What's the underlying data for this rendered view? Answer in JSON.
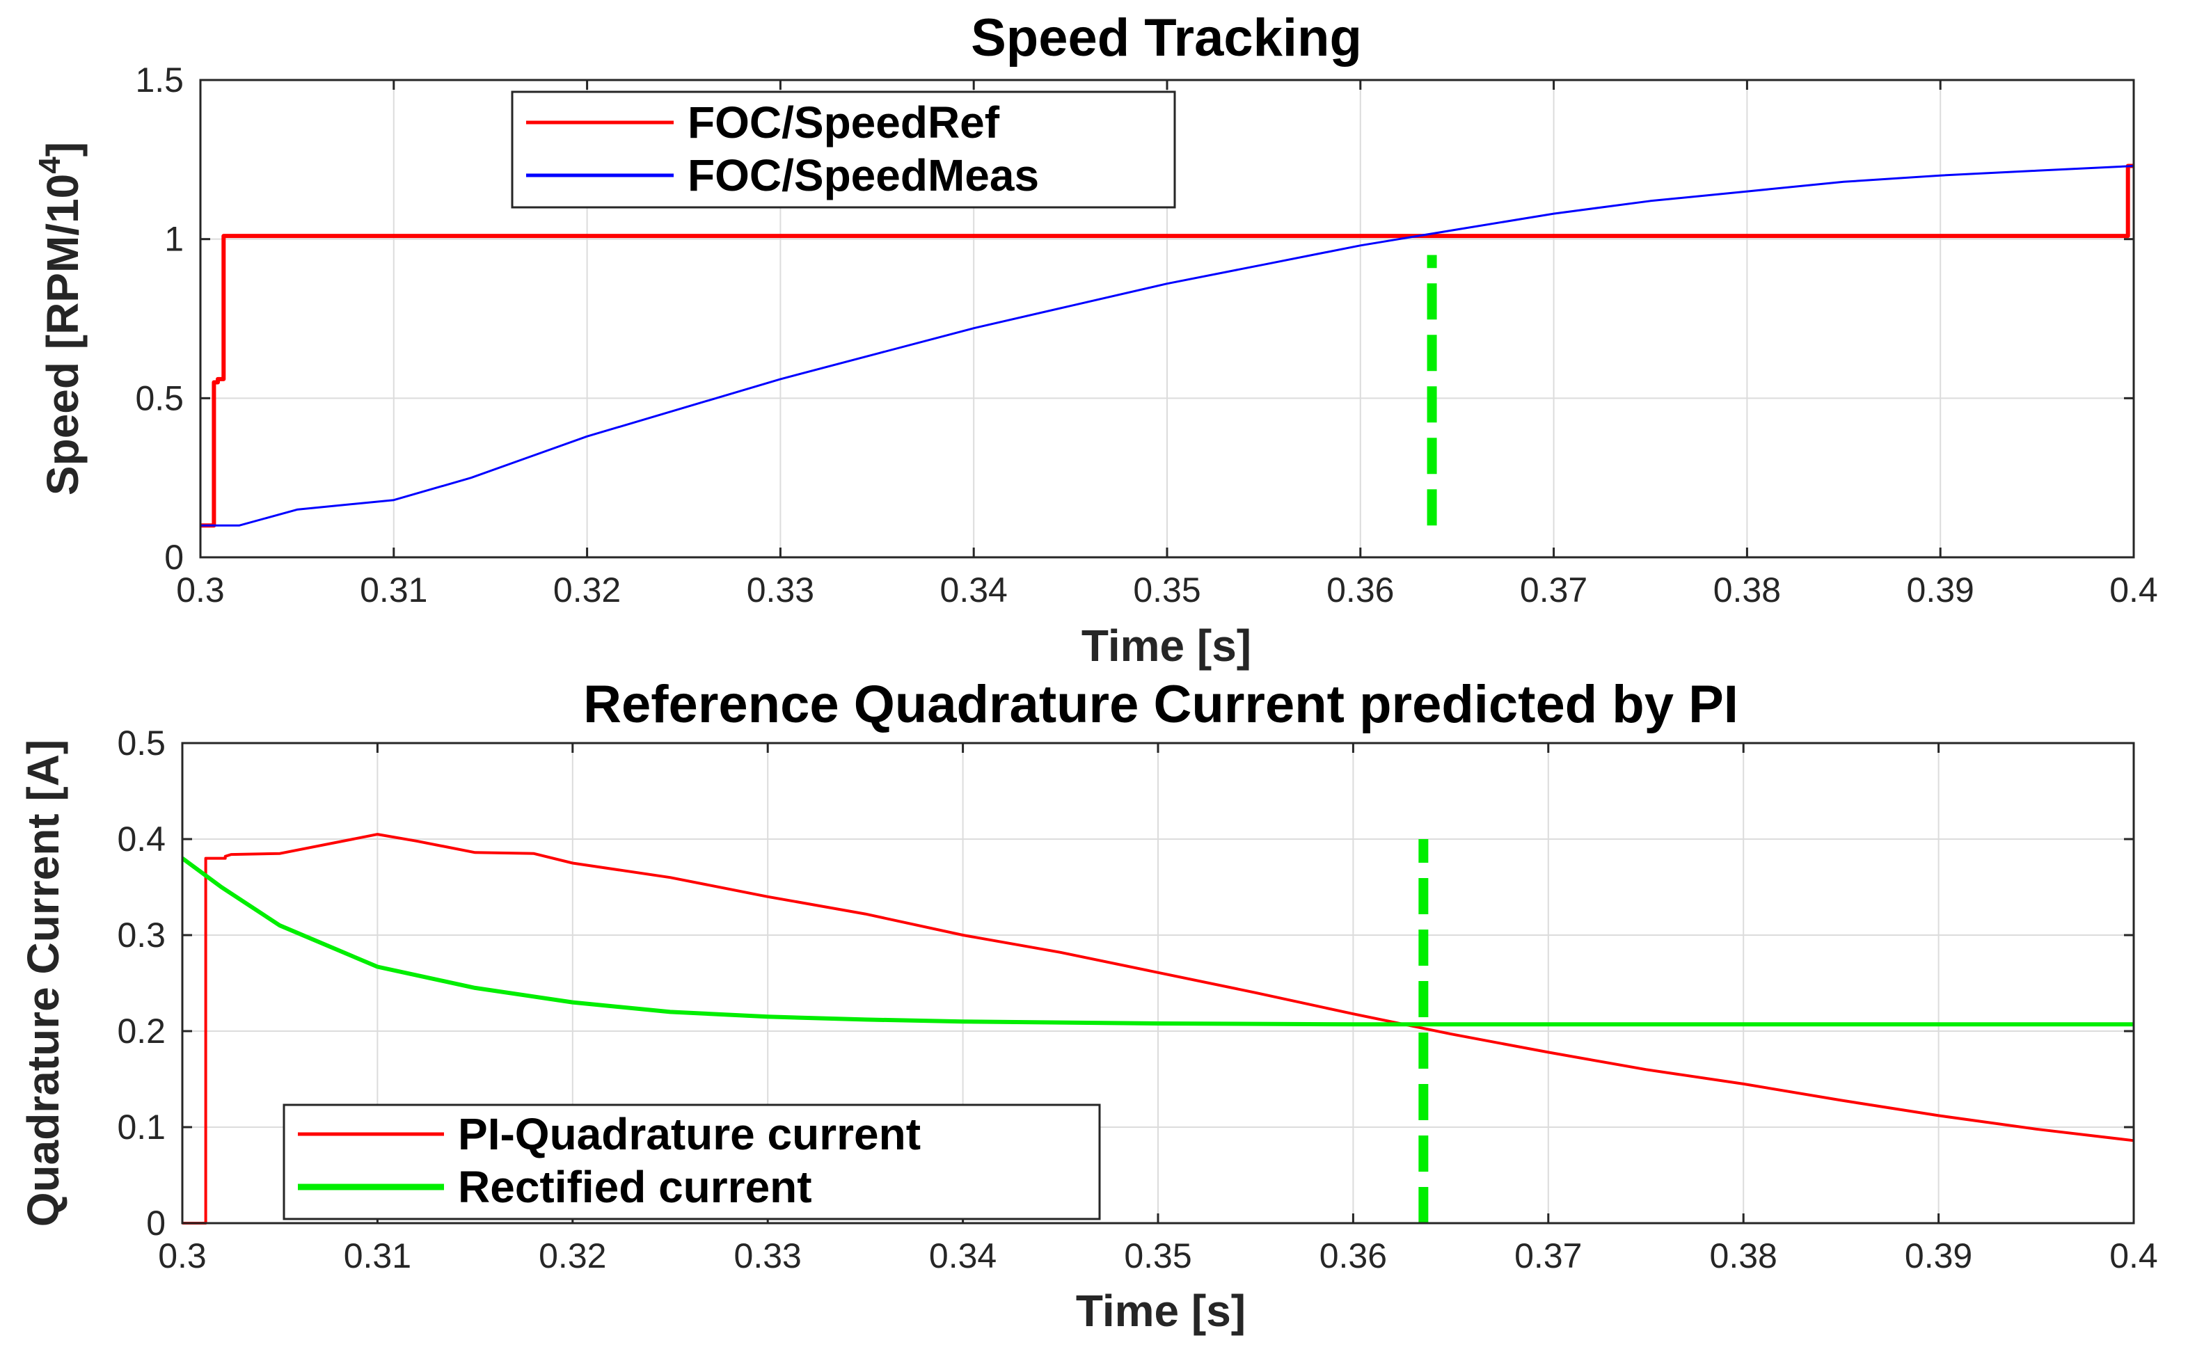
{
  "chart_data": [
    {
      "type": "line",
      "title": "Speed Tracking",
      "xlabel": "Time [s]",
      "ylabel": "Speed [RPM/10",
      "ylabel_sup": "4",
      "ylabel_close": "]",
      "xlim": [
        0.3,
        0.4
      ],
      "ylim": [
        0,
        1.5
      ],
      "xticks": [
        "0.3",
        "0.31",
        "0.32",
        "0.33",
        "0.34",
        "0.35",
        "0.36",
        "0.37",
        "0.38",
        "0.39",
        "0.4"
      ],
      "yticks": [
        "0",
        "0.5",
        "1",
        "1.5"
      ],
      "grid": true,
      "legend_position": "top-left",
      "vline": {
        "x": 0.3637,
        "y_range": [
          0.1,
          0.95
        ],
        "color": "#00ee00",
        "style": "dashed"
      },
      "series": [
        {
          "name": "FOC/SpeedRef",
          "color": "#ff0000",
          "x": [
            0.3,
            0.3007,
            0.3007,
            0.3009,
            0.3009,
            0.3012,
            0.3012,
            0.3997,
            0.3997,
            0.4
          ],
          "y": [
            0.1,
            0.1,
            0.55,
            0.55,
            0.56,
            0.56,
            1.01,
            1.01,
            1.23,
            1.23
          ]
        },
        {
          "name": "FOC/SpeedMeas",
          "color": "#0000ff",
          "x": [
            0.3,
            0.302,
            0.305,
            0.31,
            0.314,
            0.32,
            0.325,
            0.33,
            0.335,
            0.34,
            0.345,
            0.35,
            0.355,
            0.36,
            0.365,
            0.37,
            0.375,
            0.38,
            0.385,
            0.39,
            0.395,
            0.4
          ],
          "y": [
            0.1,
            0.1,
            0.15,
            0.18,
            0.25,
            0.38,
            0.47,
            0.56,
            0.64,
            0.72,
            0.79,
            0.86,
            0.92,
            0.98,
            1.03,
            1.08,
            1.12,
            1.15,
            1.18,
            1.2,
            1.215,
            1.23
          ]
        }
      ]
    },
    {
      "type": "line",
      "title": "Reference Quadrature Current predicted by PI",
      "xlabel": "Time [s]",
      "ylabel": "Quadrature Current [A]",
      "xlim": [
        0.3,
        0.4
      ],
      "ylim": [
        0,
        0.5
      ],
      "xticks": [
        "0.3",
        "0.31",
        "0.32",
        "0.33",
        "0.34",
        "0.35",
        "0.36",
        "0.37",
        "0.38",
        "0.39",
        "0.4"
      ],
      "yticks": [
        "0",
        "0.1",
        "0.2",
        "0.3",
        "0.4",
        "0.5"
      ],
      "grid": true,
      "legend_position": "bottom-left",
      "vline": {
        "x": 0.3636,
        "y_range": [
          0,
          0.4
        ],
        "color": "#00ee00",
        "style": "dashed"
      },
      "series": [
        {
          "name": "PI-Quadrature current",
          "color": "#ff0000",
          "x": [
            0.3,
            0.3012,
            0.3012,
            0.3022,
            0.3022,
            0.3025,
            0.305,
            0.31,
            0.312,
            0.315,
            0.318,
            0.32,
            0.325,
            0.33,
            0.335,
            0.34,
            0.345,
            0.35,
            0.355,
            0.36,
            0.365,
            0.37,
            0.375,
            0.38,
            0.385,
            0.39,
            0.395,
            0.4
          ],
          "y": [
            0,
            0,
            0.38,
            0.38,
            0.382,
            0.384,
            0.385,
            0.405,
            0.398,
            0.386,
            0.385,
            0.375,
            0.36,
            0.34,
            0.322,
            0.3,
            0.282,
            0.261,
            0.24,
            0.218,
            0.197,
            0.178,
            0.16,
            0.145,
            0.128,
            0.112,
            0.098,
            0.086
          ]
        },
        {
          "name": "Rectified current",
          "color": "#00ee00",
          "x": [
            0.3,
            0.302,
            0.305,
            0.31,
            0.315,
            0.32,
            0.325,
            0.33,
            0.335,
            0.34,
            0.345,
            0.35,
            0.36,
            0.37,
            0.38,
            0.39,
            0.4
          ],
          "y": [
            0.38,
            0.35,
            0.31,
            0.267,
            0.245,
            0.23,
            0.22,
            0.215,
            0.212,
            0.21,
            0.209,
            0.208,
            0.207,
            0.207,
            0.207,
            0.207,
            0.207
          ]
        }
      ]
    }
  ]
}
